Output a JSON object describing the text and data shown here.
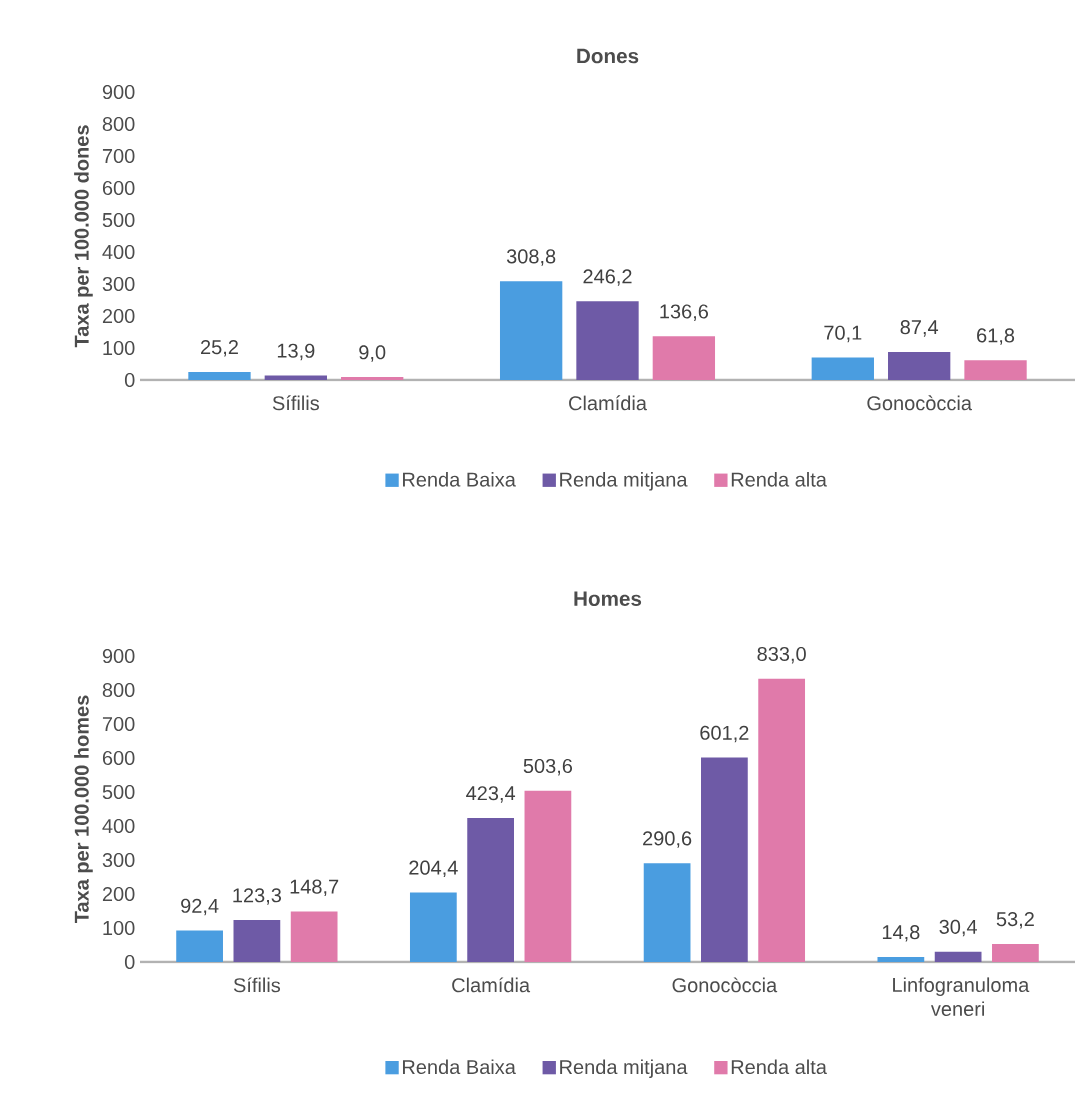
{
  "chart_data": [
    {
      "type": "bar",
      "title": "Dones",
      "ylabel": "Taxa per 100.000 dones",
      "categories": [
        "Sífilis",
        "Clamídia",
        "Gonocòccia"
      ],
      "series": [
        {
          "name": "Renda Baixa",
          "color": "#4a9de0",
          "values": [
            25.2,
            308.8,
            70.1
          ],
          "value_labels": [
            "25,2",
            "308,8",
            "70,1"
          ]
        },
        {
          "name": "Renda mitjana",
          "color": "#6e5aa6",
          "values": [
            13.9,
            246.2,
            87.4
          ],
          "value_labels": [
            "13,9",
            "246,2",
            "87,4"
          ]
        },
        {
          "name": "Renda alta",
          "color": "#e07aaa",
          "values": [
            9.0,
            136.6,
            61.8
          ],
          "value_labels": [
            "9,0",
            "136,6",
            "61,8"
          ]
        }
      ],
      "ylim": [
        0,
        900
      ],
      "yticks": [
        0,
        100,
        200,
        300,
        400,
        500,
        600,
        700,
        800,
        900
      ],
      "legend": "bottom"
    },
    {
      "type": "bar",
      "title": "Homes",
      "ylabel": "Taxa per 100.000 homes",
      "categories": [
        "Sífilis",
        "Clamídia",
        "Gonocòccia",
        "Linfogranuloma veneri"
      ],
      "series": [
        {
          "name": "Renda Baixa",
          "color": "#4a9de0",
          "values": [
            92.4,
            204.4,
            290.6,
            14.8
          ],
          "value_labels": [
            "92,4",
            "204,4",
            "290,6",
            "14,8"
          ]
        },
        {
          "name": "Renda mitjana",
          "color": "#6e5aa6",
          "values": [
            123.3,
            423.4,
            601.2,
            30.4
          ],
          "value_labels": [
            "123,3",
            "423,4",
            "601,2",
            "30,4"
          ]
        },
        {
          "name": "Renda alta",
          "color": "#e07aaa",
          "values": [
            148.7,
            503.6,
            833.0,
            53.2
          ],
          "value_labels": [
            "148,7",
            "503,6",
            "833,0",
            "53,2"
          ]
        }
      ],
      "ylim": [
        0,
        900
      ],
      "yticks": [
        0,
        100,
        200,
        300,
        400,
        500,
        600,
        700,
        800,
        900
      ],
      "legend": "bottom"
    }
  ]
}
